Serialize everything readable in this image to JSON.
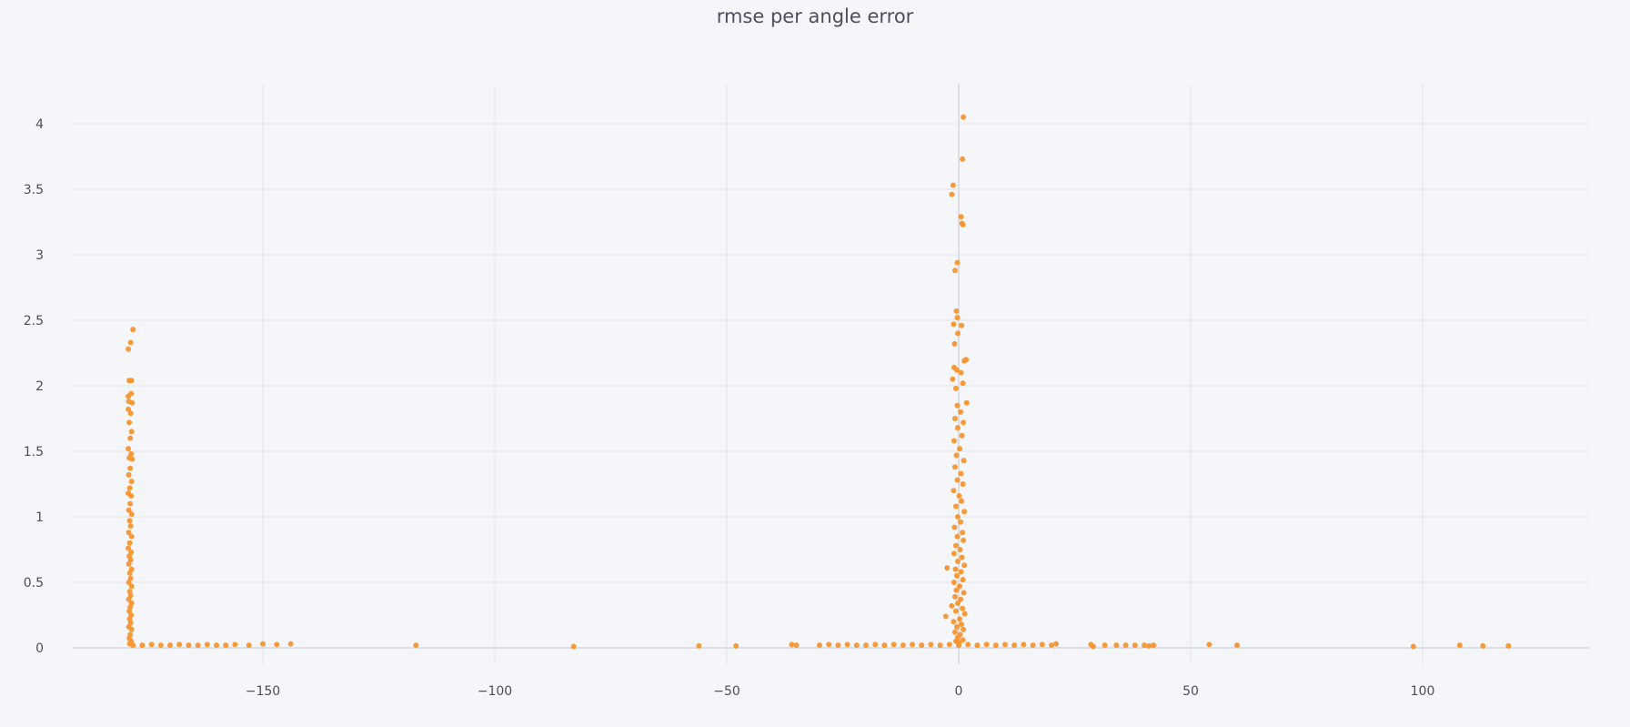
{
  "chart_data": {
    "type": "scatter",
    "title": "rmse per angle error",
    "xlabel": "",
    "ylabel": "",
    "xlim": [
      -196,
      137
    ],
    "ylim": [
      -0.1,
      4.2
    ],
    "xticks": [
      -150,
      -100,
      -50,
      0,
      50,
      100
    ],
    "xtick_labels": [
      "−150",
      "−100",
      "−50",
      "0",
      "50",
      "100"
    ],
    "yticks": [
      0,
      0.5,
      1,
      1.5,
      2,
      2.5,
      3,
      3.5,
      4
    ],
    "ytick_labels": [
      "0",
      "0.5",
      "1",
      "1.5",
      "2",
      "2.5",
      "3",
      "3.5",
      "4"
    ],
    "grid": true,
    "marker_color": "#f7952f",
    "series": [
      {
        "points": [
          [
            -179,
            2.28
          ],
          [
            -178.5,
            2.33
          ],
          [
            -178,
            2.43
          ],
          [
            -178.8,
            2.04
          ],
          [
            -178.3,
            2.04
          ],
          [
            -179,
            1.92
          ],
          [
            -178.4,
            1.94
          ],
          [
            -178.9,
            1.88
          ],
          [
            -178.2,
            1.87
          ],
          [
            -179,
            1.82
          ],
          [
            -178.5,
            1.79
          ],
          [
            -178.8,
            1.72
          ],
          [
            -178.3,
            1.65
          ],
          [
            -178.6,
            1.6
          ],
          [
            -179,
            1.52
          ],
          [
            -178.4,
            1.48
          ],
          [
            -178.8,
            1.45
          ],
          [
            -178.2,
            1.44
          ],
          [
            -178.6,
            1.37
          ],
          [
            -178.9,
            1.32
          ],
          [
            -178.3,
            1.27
          ],
          [
            -178.7,
            1.22
          ],
          [
            -179,
            1.18
          ],
          [
            -178.4,
            1.16
          ],
          [
            -178.6,
            1.1
          ],
          [
            -178.9,
            1.05
          ],
          [
            -178.3,
            1.02
          ],
          [
            -178.7,
            0.97
          ],
          [
            -178.5,
            0.93
          ],
          [
            -178.9,
            0.88
          ],
          [
            -178.3,
            0.85
          ],
          [
            -178.7,
            0.8
          ],
          [
            -179,
            0.76
          ],
          [
            -178.4,
            0.73
          ],
          [
            -178.8,
            0.7
          ],
          [
            -178.5,
            0.67
          ],
          [
            -178.9,
            0.64
          ],
          [
            -178.3,
            0.6
          ],
          [
            -178.7,
            0.57
          ],
          [
            -178.5,
            0.53
          ],
          [
            -178.9,
            0.5
          ],
          [
            -178.3,
            0.47
          ],
          [
            -178.7,
            0.43
          ],
          [
            -178.5,
            0.4
          ],
          [
            -178.9,
            0.37
          ],
          [
            -178.3,
            0.34
          ],
          [
            -178.6,
            0.31
          ],
          [
            -178.8,
            0.28
          ],
          [
            -178.4,
            0.25
          ],
          [
            -178.7,
            0.22
          ],
          [
            -178.5,
            0.19
          ],
          [
            -178.9,
            0.16
          ],
          [
            -178.3,
            0.14
          ],
          [
            -178.6,
            0.1
          ],
          [
            -178.8,
            0.07
          ],
          [
            -178.4,
            0.05
          ],
          [
            -178.7,
            0.03
          ],
          [
            -178,
            0.02
          ],
          [
            -176,
            0.02
          ],
          [
            -174,
            0.025
          ],
          [
            -172,
            0.02
          ],
          [
            -170,
            0.02
          ],
          [
            -168,
            0.025
          ],
          [
            -166,
            0.02
          ],
          [
            -164,
            0.02
          ],
          [
            -162,
            0.025
          ],
          [
            -160,
            0.02
          ],
          [
            -158,
            0.02
          ],
          [
            -156,
            0.025
          ],
          [
            -153,
            0.02
          ],
          [
            -150,
            0.03
          ],
          [
            -147,
            0.025
          ],
          [
            -144,
            0.03
          ],
          [
            -117,
            0.02
          ],
          [
            -83,
            0.01
          ],
          [
            -56,
            0.015
          ],
          [
            -48,
            0.015
          ],
          [
            -36,
            0.025
          ],
          [
            -35,
            0.02
          ],
          [
            -30,
            0.02
          ],
          [
            -28,
            0.025
          ],
          [
            -26,
            0.02
          ],
          [
            -24,
            0.025
          ],
          [
            -22,
            0.02
          ],
          [
            -20,
            0.02
          ],
          [
            -18,
            0.025
          ],
          [
            -16,
            0.02
          ],
          [
            -14,
            0.025
          ],
          [
            -12,
            0.02
          ],
          [
            -10,
            0.025
          ],
          [
            -8,
            0.02
          ],
          [
            -6,
            0.025
          ],
          [
            -4,
            0.02
          ],
          [
            -2,
            0.025
          ],
          [
            0,
            0.02
          ],
          [
            2,
            0.025
          ],
          [
            4,
            0.02
          ],
          [
            6,
            0.025
          ],
          [
            8,
            0.02
          ],
          [
            10,
            0.025
          ],
          [
            12,
            0.02
          ],
          [
            14,
            0.025
          ],
          [
            16,
            0.02
          ],
          [
            18,
            0.025
          ],
          [
            20,
            0.02
          ],
          [
            21,
            0.03
          ],
          [
            28.5,
            0.025
          ],
          [
            29,
            0.01
          ],
          [
            31.5,
            0.02
          ],
          [
            34,
            0.02
          ],
          [
            36,
            0.02
          ],
          [
            38,
            0.02
          ],
          [
            40,
            0.02
          ],
          [
            41,
            0.015
          ],
          [
            42,
            0.02
          ],
          [
            54,
            0.025
          ],
          [
            60,
            0.02
          ],
          [
            98,
            0.01
          ],
          [
            108,
            0.02
          ],
          [
            113,
            0.015
          ],
          [
            118.5,
            0.015
          ],
          [
            1,
            4.05
          ],
          [
            0.8,
            3.73
          ],
          [
            -1.2,
            3.53
          ],
          [
            -1.5,
            3.46
          ],
          [
            0.5,
            3.29
          ],
          [
            0.7,
            3.24
          ],
          [
            0.9,
            3.23
          ],
          [
            -0.3,
            2.94
          ],
          [
            -0.8,
            2.88
          ],
          [
            -0.5,
            2.57
          ],
          [
            -0.3,
            2.52
          ],
          [
            -1.1,
            2.47
          ],
          [
            0.6,
            2.46
          ],
          [
            -0.2,
            2.4
          ],
          [
            -0.9,
            2.32
          ],
          [
            1.6,
            2.2
          ],
          [
            1.2,
            2.19
          ],
          [
            -1.0,
            2.14
          ],
          [
            -0.4,
            2.12
          ],
          [
            0.5,
            2.1
          ],
          [
            -1.3,
            2.05
          ],
          [
            0.9,
            2.02
          ],
          [
            -0.6,
            1.98
          ],
          [
            1.7,
            1.87
          ],
          [
            -0.3,
            1.85
          ],
          [
            0.4,
            1.8
          ],
          [
            -0.8,
            1.75
          ],
          [
            1.0,
            1.72
          ],
          [
            -0.2,
            1.68
          ],
          [
            0.7,
            1.62
          ],
          [
            -1.0,
            1.58
          ],
          [
            0.2,
            1.52
          ],
          [
            -0.5,
            1.47
          ],
          [
            1.1,
            1.43
          ],
          [
            -0.8,
            1.38
          ],
          [
            0.5,
            1.33
          ],
          [
            -0.3,
            1.28
          ],
          [
            0.9,
            1.25
          ],
          [
            -1.1,
            1.2
          ],
          [
            0.1,
            1.16
          ],
          [
            0.6,
            1.12
          ],
          [
            -0.6,
            1.08
          ],
          [
            1.2,
            1.04
          ],
          [
            -0.2,
            1.0
          ],
          [
            0.4,
            0.96
          ],
          [
            -0.9,
            0.92
          ],
          [
            0.8,
            0.88
          ],
          [
            -0.3,
            0.85
          ],
          [
            1.0,
            0.82
          ],
          [
            -0.6,
            0.78
          ],
          [
            0.3,
            0.75
          ],
          [
            -1.0,
            0.72
          ],
          [
            0.7,
            0.69
          ],
          [
            -0.2,
            0.66
          ],
          [
            1.2,
            0.63
          ],
          [
            -0.7,
            0.6
          ],
          [
            -2.5,
            0.61
          ],
          [
            0.5,
            0.58
          ],
          [
            -0.4,
            0.55
          ],
          [
            0.9,
            0.52
          ],
          [
            -1.0,
            0.5
          ],
          [
            0.2,
            0.47
          ],
          [
            -0.5,
            0.44
          ],
          [
            1.1,
            0.42
          ],
          [
            -0.8,
            0.39
          ],
          [
            0.4,
            0.37
          ],
          [
            -0.2,
            0.34
          ],
          [
            -1.5,
            0.32
          ],
          [
            0.8,
            0.3
          ],
          [
            -0.6,
            0.28
          ],
          [
            1.3,
            0.26
          ],
          [
            -2.8,
            0.24
          ],
          [
            0.2,
            0.22
          ],
          [
            -1.1,
            0.2
          ],
          [
            0.6,
            0.18
          ],
          [
            -0.4,
            0.16
          ],
          [
            1.0,
            0.14
          ],
          [
            -0.8,
            0.12
          ],
          [
            0.3,
            0.1
          ],
          [
            -0.2,
            0.08
          ],
          [
            0.9,
            0.06
          ],
          [
            -0.6,
            0.05
          ],
          [
            0.1,
            0.04
          ]
        ]
      }
    ]
  }
}
